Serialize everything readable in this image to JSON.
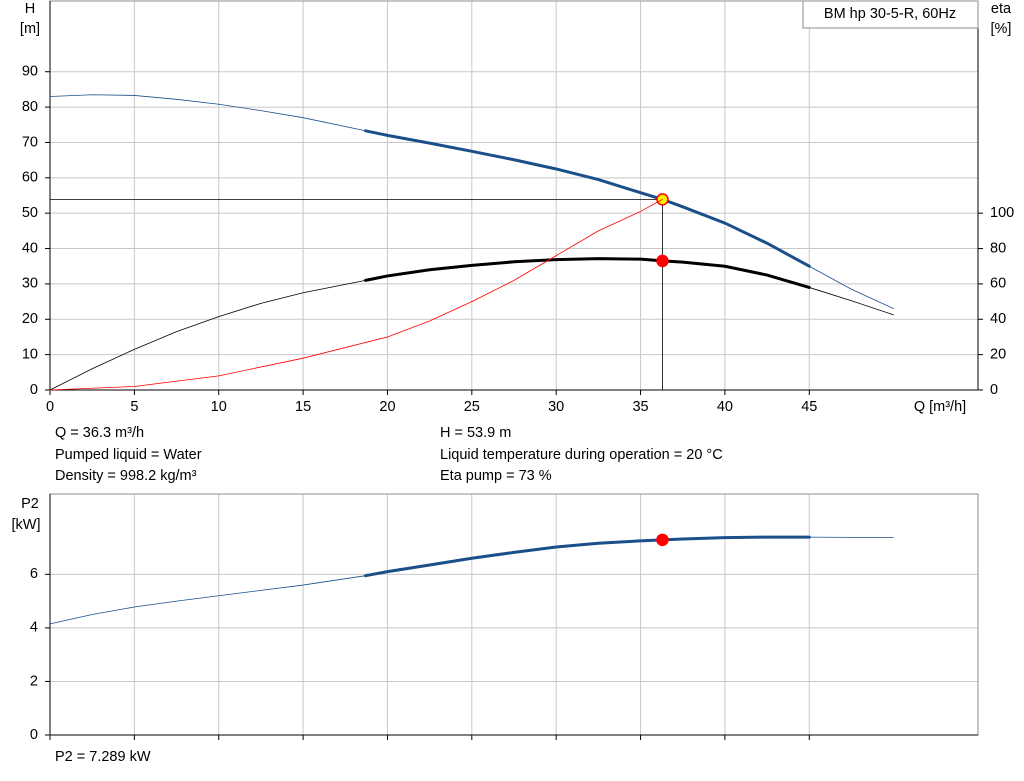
{
  "chart_data": [
    {
      "type": "line",
      "title": "BM hp 30-5-R, 60Hz",
      "xlabel": "Q [m³/h]",
      "ylabel": [
        "H",
        "[m]"
      ],
      "y2label": [
        "eta",
        "[%]"
      ],
      "xlim": [
        0,
        55
      ],
      "xticks": [
        0,
        5,
        10,
        15,
        20,
        25,
        30,
        35,
        40,
        45
      ],
      "ylim": [
        0,
        110
      ],
      "yticks": [
        0,
        10,
        20,
        30,
        40,
        50,
        60,
        70,
        80,
        90
      ],
      "y2lim": [
        0,
        220
      ],
      "y2ticks": [
        0,
        20,
        40,
        60,
        80,
        100
      ],
      "grid": true,
      "operating_q": 36.3,
      "crosshair": true,
      "series": [
        {
          "color": "#1a4f8a",
          "duty_range": [
            18.7,
            45
          ],
          "marker_color": "#ffee00",
          "x": [
            0,
            2.5,
            5,
            7.5,
            10,
            12.5,
            15,
            18.7,
            20,
            22.5,
            25,
            27.5,
            30,
            32.5,
            35,
            36.3,
            37.5,
            40,
            42.5,
            45,
            47.5,
            50
          ],
          "values": [
            83,
            83.5,
            83.3,
            82.2,
            80.8,
            79,
            77,
            73.3,
            72,
            69.8,
            67.5,
            65.1,
            62.5,
            59.5,
            55.8,
            53.9,
            51.8,
            47.2,
            41.5,
            35,
            28.5,
            23
          ]
        },
        {
          "color": "#000000",
          "axis": "y2",
          "duty_range": [
            18.7,
            45
          ],
          "marker_color": "#ff0000",
          "x": [
            0,
            2.5,
            5,
            7.5,
            10,
            12.5,
            15,
            18.7,
            20,
            22.5,
            25,
            27.5,
            30,
            32.5,
            35,
            36.3,
            37.5,
            40,
            42.5,
            45,
            47.5,
            50
          ],
          "values": [
            0,
            12,
            23,
            33,
            41.5,
            49,
            55,
            62,
            64.5,
            68,
            70.5,
            72.5,
            73.7,
            74.3,
            74,
            73,
            72.3,
            70,
            65,
            58,
            50.5,
            42.5
          ]
        },
        {
          "color": "#ff0000",
          "x": [
            0,
            5,
            10,
            15,
            20,
            22.5,
            25,
            27.5,
            30,
            32.5,
            35,
            36.3
          ],
          "values": [
            0,
            1,
            4,
            9,
            15,
            19.5,
            25,
            31,
            38,
            45,
            50.5,
            53.9
          ]
        }
      ],
      "annotations": [
        "Q = 36.3 m³/h",
        "Pumped liquid = Water",
        "Density = 998.2 kg/m³",
        "H = 53.9 m",
        "Liquid temperature during operation = 20 °C",
        "Eta pump = 73 %"
      ]
    },
    {
      "type": "line",
      "ylabel": [
        "P2",
        "[kW]"
      ],
      "xlim": [
        0,
        55
      ],
      "xticks": [
        0,
        5,
        10,
        15,
        20,
        25,
        30,
        35,
        40,
        45
      ],
      "ylim": [
        0,
        9
      ],
      "yticks": [
        0,
        2,
        4,
        6
      ],
      "grid": true,
      "operating_q": 36.3,
      "series": [
        {
          "color": "#1a4f8a",
          "duty_range": [
            18.7,
            45
          ],
          "marker_color": "#ff0000",
          "x": [
            0,
            2.5,
            5,
            7.5,
            10,
            12.5,
            15,
            18.7,
            20,
            22.5,
            25,
            27.5,
            30,
            32.5,
            35,
            36.3,
            37.5,
            40,
            42.5,
            45,
            47.5,
            50
          ],
          "values": [
            4.15,
            4.5,
            4.78,
            5.0,
            5.2,
            5.4,
            5.6,
            5.95,
            6.1,
            6.35,
            6.6,
            6.82,
            7.02,
            7.16,
            7.25,
            7.289,
            7.32,
            7.37,
            7.39,
            7.39,
            7.38,
            7.38
          ]
        }
      ],
      "annotations": [
        "P2 = 7.289 kW"
      ]
    }
  ]
}
